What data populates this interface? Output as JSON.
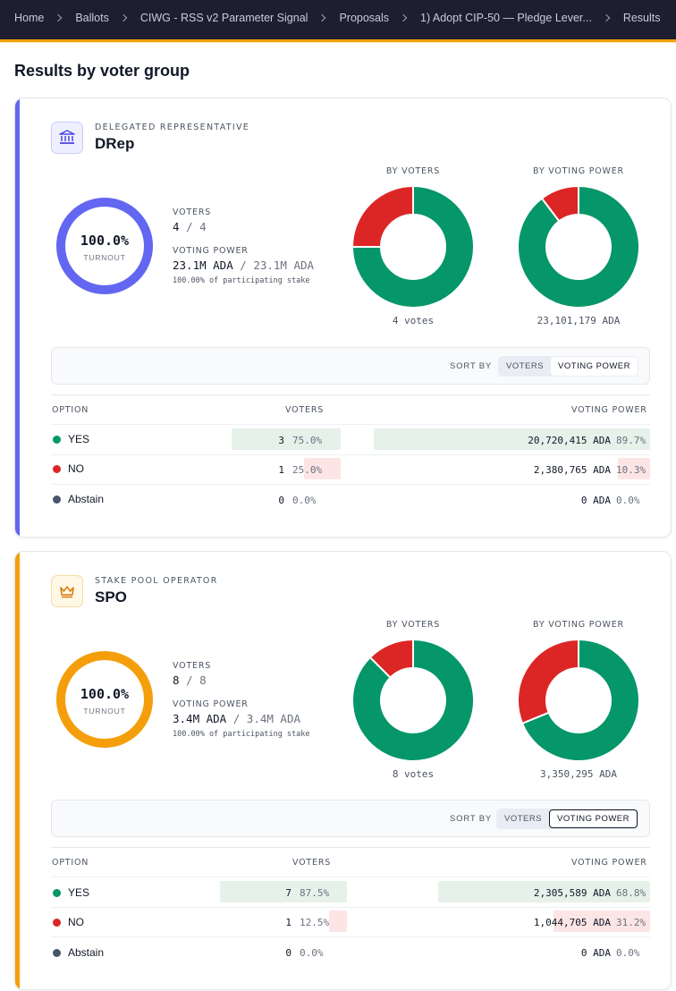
{
  "breadcrumb": [
    "Home",
    "Ballots",
    "CIWG - RSS v2 Parameter Signal",
    "Proposals",
    "1) Adopt CIP-50 — Pledge Lever...",
    "Results"
  ],
  "page_title": "Results by voter group",
  "colors": {
    "yes": "#059669",
    "no": "#dc2626",
    "abstain": "#475569",
    "drep_accent": "#6366f1",
    "spo_accent": "#f59e0b",
    "yes_bg": "#e6f1ea",
    "no_bg": "#fde5e5"
  },
  "groups": [
    {
      "kicker": "DELEGATED REPRESENTATIVE",
      "name": "DRep",
      "icon": "bank-building-icon",
      "turnout": {
        "pct": "100.0%",
        "label": "TURNOUT",
        "fraction": 1.0
      },
      "voters_label": "VOTERS",
      "voters_count": "4",
      "voters_total": "/ 4",
      "power_label": "VOTING POWER",
      "power_value": "23.1M ADA",
      "power_total": "/ 23.1M ADA",
      "power_note": "100.00% of participating stake",
      "by_voters_title": "BY VOTERS",
      "by_power_title": "BY VOTING POWER",
      "by_voters_caption": "4 votes",
      "by_power_caption": "23,101,179 ADA",
      "by_voters_shares": [
        0.75,
        0.25,
        0.0
      ],
      "by_power_shares": [
        0.897,
        0.103,
        0.0
      ],
      "sort_label": "SORT BY",
      "sort_options": [
        "VOTERS",
        "VOTING POWER"
      ],
      "table_headers": {
        "option": "OPTION",
        "voters": "VOTERS",
        "power": "VOTING POWER"
      },
      "rows": [
        {
          "option": "YES",
          "voters": "3",
          "voters_pct": "75.0%",
          "voters_share": 0.75,
          "power": "20,720,415 ADA",
          "power_pct": "89.7%",
          "power_share": 0.897
        },
        {
          "option": "NO",
          "voters": "1",
          "voters_pct": "25.0%",
          "voters_share": 0.25,
          "power": "2,380,765 ADA",
          "power_pct": "10.3%",
          "power_share": 0.103
        },
        {
          "option": "Abstain",
          "voters": "0",
          "voters_pct": "0.0%",
          "voters_share": 0.0,
          "power": "0 ADA",
          "power_pct": "0.0%",
          "power_share": 0.0
        }
      ]
    },
    {
      "kicker": "STAKE POOL OPERATOR",
      "name": "SPO",
      "icon": "crown-icon",
      "turnout": {
        "pct": "100.0%",
        "label": "TURNOUT",
        "fraction": 1.0
      },
      "voters_label": "VOTERS",
      "voters_count": "8",
      "voters_total": "/ 8",
      "power_label": "VOTING POWER",
      "power_value": "3.4M ADA",
      "power_total": "/ 3.4M ADA",
      "power_note": "100.00% of participating stake",
      "by_voters_title": "BY VOTERS",
      "by_power_title": "BY VOTING POWER",
      "by_voters_caption": "8 votes",
      "by_power_caption": "3,350,295 ADA",
      "by_voters_shares": [
        0.875,
        0.125,
        0.0
      ],
      "by_power_shares": [
        0.688,
        0.312,
        0.0
      ],
      "sort_label": "SORT BY",
      "sort_options": [
        "VOTERS",
        "VOTING POWER"
      ],
      "table_headers": {
        "option": "OPTION",
        "voters": "VOTERS",
        "power": "VOTING POWER"
      },
      "rows": [
        {
          "option": "YES",
          "voters": "7",
          "voters_pct": "87.5%",
          "voters_share": 0.875,
          "power": "2,305,589 ADA",
          "power_pct": "68.8%",
          "power_share": 0.688
        },
        {
          "option": "NO",
          "voters": "1",
          "voters_pct": "12.5%",
          "voters_share": 0.125,
          "power": "1,044,705 ADA",
          "power_pct": "31.2%",
          "power_share": 0.312
        },
        {
          "option": "Abstain",
          "voters": "0",
          "voters_pct": "0.0%",
          "voters_share": 0.0,
          "power": "0 ADA",
          "power_pct": "0.0%",
          "power_share": 0.0
        }
      ]
    }
  ]
}
